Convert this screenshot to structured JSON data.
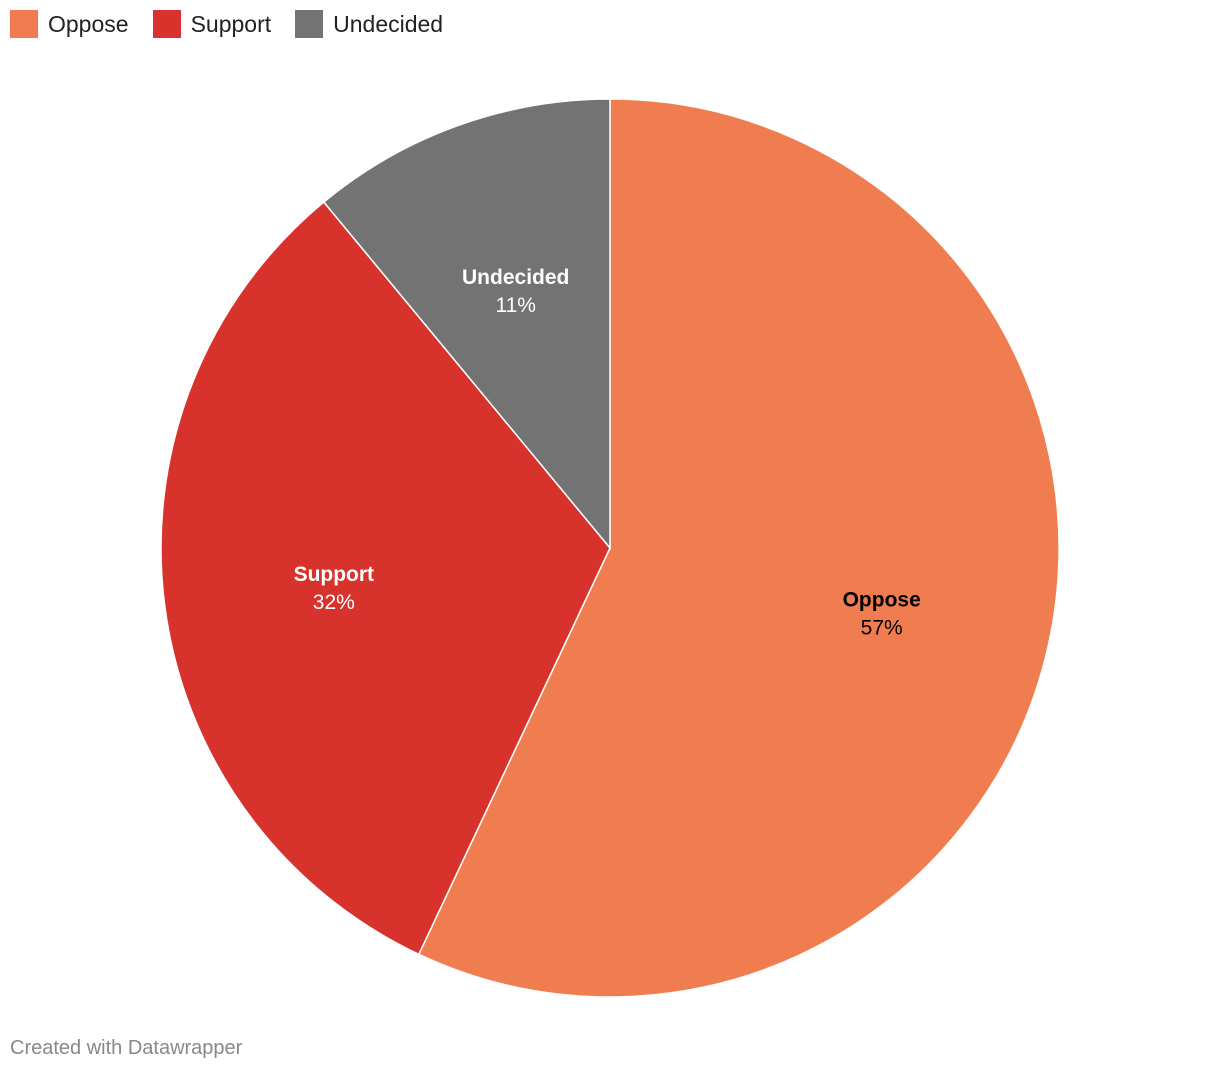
{
  "chart_data": {
    "type": "pie",
    "slices": [
      {
        "label": "Oppose",
        "value": 57,
        "display": "57%",
        "color": "#f07d4f",
        "text_color": "#000000"
      },
      {
        "label": "Support",
        "value": 32,
        "display": "32%",
        "color": "#d8322c",
        "text_color": "#ffffff"
      },
      {
        "label": "Undecided",
        "value": 11,
        "display": "11%",
        "color": "#737373",
        "text_color": "#ffffff"
      }
    ],
    "start_angle": "12 o'clock",
    "direction": "clockwise",
    "legend_position": "top-left"
  },
  "legend": {
    "items": [
      {
        "label": "Oppose",
        "color": "#f07d4f"
      },
      {
        "label": "Support",
        "color": "#d8322c"
      },
      {
        "label": "Undecided",
        "color": "#737373"
      }
    ]
  },
  "footer": {
    "credit": "Created with Datawrapper"
  }
}
